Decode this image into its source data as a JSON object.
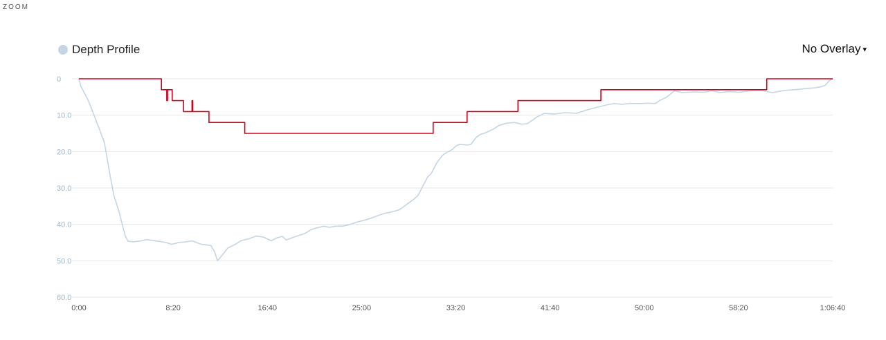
{
  "header": {
    "zoom_label": "ZOOM"
  },
  "legend": {
    "label": "Depth Profile",
    "color": "#c5d5e4"
  },
  "overlay": {
    "label": "No Overlay",
    "caret": "▾"
  },
  "chart_data": {
    "type": "line",
    "title": "",
    "xlabel": "",
    "ylabel": "",
    "y_inverted": true,
    "ylim": [
      0,
      60
    ],
    "xlim_seconds": [
      0,
      4000
    ],
    "grid": true,
    "legend_position": "top-left",
    "y_ticks": [
      "0",
      "10.0",
      "20.0",
      "30.0",
      "40.0",
      "50.0",
      "60.0"
    ],
    "y_tick_values": [
      0,
      10,
      20,
      30,
      40,
      50,
      60
    ],
    "x_ticks": [
      "0:00",
      "8:20",
      "16:40",
      "25:00",
      "33:20",
      "41:40",
      "50:00",
      "58:20",
      "1:06:40"
    ],
    "x_tick_values": [
      0,
      500,
      1000,
      1500,
      2000,
      2500,
      3000,
      3500,
      4000
    ],
    "series": [
      {
        "name": "Depth Profile",
        "color": "#c5d5e4",
        "points": [
          [
            0,
            0
          ],
          [
            10,
            2
          ],
          [
            25,
            3.5
          ],
          [
            50,
            6
          ],
          [
            80,
            10
          ],
          [
            110,
            14
          ],
          [
            135,
            17.5
          ],
          [
            160,
            25
          ],
          [
            185,
            32
          ],
          [
            210,
            36
          ],
          [
            230,
            40
          ],
          [
            245,
            43
          ],
          [
            260,
            44.6
          ],
          [
            290,
            44.8
          ],
          [
            330,
            44.5
          ],
          [
            360,
            44.2
          ],
          [
            420,
            44.6
          ],
          [
            470,
            45.1
          ],
          [
            490,
            45.5
          ],
          [
            530,
            45.0
          ],
          [
            570,
            44.8
          ],
          [
            600,
            44.5
          ],
          [
            650,
            45.5
          ],
          [
            700,
            45.8
          ],
          [
            720,
            47.5
          ],
          [
            735,
            50
          ],
          [
            760,
            48.5
          ],
          [
            790,
            46.5
          ],
          [
            830,
            45.5
          ],
          [
            860,
            44.5
          ],
          [
            900,
            44
          ],
          [
            940,
            43.2
          ],
          [
            980,
            43.5
          ],
          [
            1020,
            44.5
          ],
          [
            1050,
            43.7
          ],
          [
            1080,
            43.3
          ],
          [
            1100,
            44.3
          ],
          [
            1140,
            43.5
          ],
          [
            1170,
            43
          ],
          [
            1200,
            42.5
          ],
          [
            1230,
            41.5
          ],
          [
            1260,
            41
          ],
          [
            1300,
            40.5
          ],
          [
            1330,
            40.8
          ],
          [
            1360,
            40.5
          ],
          [
            1400,
            40.5
          ],
          [
            1440,
            40
          ],
          [
            1480,
            39.3
          ],
          [
            1520,
            38.8
          ],
          [
            1550,
            38.3
          ],
          [
            1580,
            37.7
          ],
          [
            1620,
            37
          ],
          [
            1650,
            36.7
          ],
          [
            1700,
            36
          ],
          [
            1740,
            34.5
          ],
          [
            1780,
            33
          ],
          [
            1800,
            32
          ],
          [
            1820,
            30
          ],
          [
            1850,
            27
          ],
          [
            1870,
            26
          ],
          [
            1900,
            23
          ],
          [
            1930,
            21
          ],
          [
            1960,
            20
          ],
          [
            1980,
            19.5
          ],
          [
            2000,
            18.5
          ],
          [
            2020,
            18
          ],
          [
            2060,
            18.2
          ],
          [
            2080,
            18
          ],
          [
            2110,
            16
          ],
          [
            2130,
            15.3
          ],
          [
            2160,
            14.8
          ],
          [
            2200,
            13.8
          ],
          [
            2230,
            12.8
          ],
          [
            2270,
            12.2
          ],
          [
            2310,
            12
          ],
          [
            2350,
            12.5
          ],
          [
            2380,
            12.3
          ],
          [
            2430,
            10.5
          ],
          [
            2470,
            9.5
          ],
          [
            2520,
            9.7
          ],
          [
            2580,
            9.3
          ],
          [
            2640,
            9.5
          ],
          [
            2700,
            8.5
          ],
          [
            2750,
            7.8
          ],
          [
            2800,
            7.2
          ],
          [
            2840,
            6.8
          ],
          [
            2880,
            7
          ],
          [
            2920,
            6.8
          ],
          [
            2980,
            6.8
          ],
          [
            3020,
            6.7
          ],
          [
            3060,
            6.8
          ],
          [
            3080,
            6
          ],
          [
            3120,
            5
          ],
          [
            3160,
            3.3
          ],
          [
            3200,
            3.8
          ],
          [
            3260,
            3.6
          ],
          [
            3320,
            3.7
          ],
          [
            3360,
            3.3
          ],
          [
            3400,
            3.8
          ],
          [
            3450,
            3.5
          ],
          [
            3500,
            3.7
          ],
          [
            3560,
            3.3
          ],
          [
            3620,
            3.2
          ],
          [
            3680,
            3.8
          ],
          [
            3740,
            3.2
          ],
          [
            3800,
            3.0
          ],
          [
            3860,
            2.7
          ],
          [
            3900,
            2.5
          ],
          [
            3930,
            2.3
          ],
          [
            3960,
            1.8
          ],
          [
            3980,
            0.6
          ],
          [
            4000,
            0
          ]
        ]
      },
      {
        "name": "",
        "color": "#d0021b",
        "step": true,
        "points": [
          [
            0,
            0
          ],
          [
            438,
            0
          ],
          [
            438,
            3
          ],
          [
            466,
            3
          ],
          [
            466,
            6
          ],
          [
            470,
            6
          ],
          [
            470,
            3
          ],
          [
            495,
            3
          ],
          [
            495,
            6
          ],
          [
            555,
            6
          ],
          [
            555,
            9
          ],
          [
            600,
            9
          ],
          [
            600,
            6
          ],
          [
            604,
            6
          ],
          [
            604,
            9
          ],
          [
            690,
            9
          ],
          [
            690,
            12
          ],
          [
            880,
            12
          ],
          [
            880,
            15
          ],
          [
            1880,
            15
          ],
          [
            1880,
            12
          ],
          [
            2060,
            12
          ],
          [
            2060,
            9
          ],
          [
            2330,
            9
          ],
          [
            2330,
            6
          ],
          [
            2770,
            6
          ],
          [
            2770,
            3
          ],
          [
            3650,
            3
          ],
          [
            3650,
            0
          ],
          [
            4000,
            0
          ]
        ]
      }
    ]
  }
}
